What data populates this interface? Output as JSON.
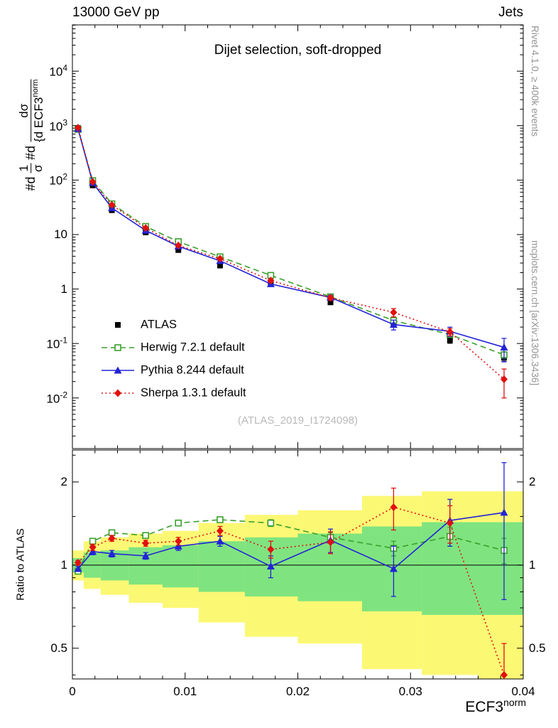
{
  "header": {
    "left": "13000 GeV pp",
    "right": "Jets"
  },
  "title": "Dijet selection, soft-dropped",
  "watermark": "(ATLAS_2019_I1724098)",
  "side_texts": {
    "top_right": "Rivet 4.1.0, ≥ 400k events",
    "bottom_right": "mcplots.cern.ch [arXiv:1306.3436]"
  },
  "axes": {
    "x_label_base": "ECF3",
    "x_label_sup": "norm",
    "ratio_label": "Ratio to ATLAS",
    "y_label_parts": {
      "p1": "#d",
      "num1": "1",
      "den1": "σ",
      "p2": "#d",
      "num2": "dσ",
      "den2_pre": "{d ECF3",
      "den2_sup": "norm"
    },
    "x_range": [
      0,
      0.04
    ],
    "main_y_range_exp": [
      -2.93,
      4.85
    ],
    "ratio_y_range": [
      0.387,
      2.61
    ],
    "x_ticks": [
      {
        "label": "0",
        "v": 0
      },
      {
        "label": "0.01",
        "v": 0.01
      },
      {
        "label": "0.02",
        "v": 0.02
      },
      {
        "label": "0.03",
        "v": 0.03
      },
      {
        "label": "0.04",
        "v": 0.04
      }
    ],
    "main_y_ticks": [
      {
        "base": "10",
        "sup": "4",
        "v": 10000
      },
      {
        "base": "10",
        "sup": "3",
        "v": 1000
      },
      {
        "base": "10",
        "sup": "2",
        "v": 100
      },
      {
        "base": "10",
        "sup": "",
        "v": 10
      },
      {
        "base": "1",
        "sup": "",
        "v": 1
      },
      {
        "base": "10",
        "sup": "-1",
        "v": 0.1
      },
      {
        "base": "10",
        "sup": "-2",
        "v": 0.01
      }
    ],
    "ratio_y_ticks": [
      {
        "label": "2",
        "v": 2
      },
      {
        "label": "1",
        "v": 1
      },
      {
        "label": "0.5",
        "v": 0.5
      }
    ]
  },
  "chart_data": {
    "type": "line",
    "title": "Dijet selection, soft-dropped",
    "xlabel": "ECF3^norm",
    "ylabel": "1/sigma dsigma/d ECF3^norm",
    "ratio_ylabel": "Ratio to ATLAS",
    "x_log": false,
    "y_log": true,
    "ratio_log": true,
    "x": [
      0.0005,
      0.0018,
      0.0035,
      0.0065,
      0.0094,
      0.0131,
      0.0176,
      0.0229,
      0.0285,
      0.0335,
      0.0383
    ],
    "series": [
      {
        "name": "ATLAS",
        "color": "#000000",
        "marker": "square",
        "line": "none",
        "values": [
          900,
          80,
          28,
          11,
          5.2,
          2.7,
          1.25,
          0.57,
          0.23,
          0.115,
          0.055
        ],
        "err": [
          36,
          3.2,
          1.1,
          0.55,
          0.26,
          0.16,
          0.09,
          0.046,
          0.023,
          0.014,
          0.008
        ]
      },
      {
        "name": "Herwig 7.2.1 default",
        "color": "#3aa02c",
        "marker": "square-open",
        "line": "dashed",
        "values": [
          855,
          97.6,
          36.7,
          14.1,
          7.4,
          3.9,
          1.78,
          0.72,
          0.264,
          0.146,
          0.062
        ],
        "err": [
          18,
          2,
          0.7,
          0.4,
          0.2,
          0.12,
          0.07,
          0.04,
          0.018,
          0.013,
          0.008
        ],
        "ratio": [
          0.95,
          1.22,
          1.31,
          1.28,
          1.42,
          1.46,
          1.42,
          1.26,
          1.15,
          1.27,
          1.13
        ],
        "ratio_err": [
          0.02,
          0.02,
          0.02,
          0.03,
          0.03,
          0.03,
          0.04,
          0.05,
          0.07,
          0.1,
          0.12
        ]
      },
      {
        "name": "Pythia 8.244 default",
        "color": "#2323d7",
        "marker": "triangle",
        "line": "solid",
        "values": [
          873,
          89.6,
          30.8,
          11.9,
          6.1,
          3.3,
          1.24,
          0.7,
          0.223,
          0.167,
          0.085
        ],
        "err": [
          18,
          2.4,
          0.9,
          0.4,
          0.21,
          0.14,
          0.11,
          0.07,
          0.046,
          0.032,
          0.039
        ],
        "ratio": [
          0.97,
          1.12,
          1.1,
          1.08,
          1.17,
          1.22,
          0.99,
          1.23,
          0.97,
          1.45,
          1.55
        ],
        "ratio_err": [
          0.02,
          0.03,
          0.03,
          0.03,
          0.04,
          0.05,
          0.09,
          0.12,
          0.2,
          0.28,
          0.8
        ]
      },
      {
        "name": "Sherpa 1.3.1 default",
        "color": "#e11010",
        "marker": "diamond",
        "line": "dotted",
        "values": [
          918,
          93,
          35,
          13.2,
          6.3,
          3.6,
          1.43,
          0.69,
          0.373,
          0.163,
          0.022
        ],
        "err": [
          18,
          2.4,
          0.9,
          0.4,
          0.21,
          0.14,
          0.1,
          0.063,
          0.064,
          0.025,
          0.012
        ],
        "ratio": [
          1.02,
          1.16,
          1.25,
          1.2,
          1.22,
          1.33,
          1.14,
          1.21,
          1.62,
          1.42,
          0.4
        ],
        "ratio_err": [
          0.02,
          0.03,
          0.03,
          0.03,
          0.04,
          0.05,
          0.08,
          0.11,
          0.28,
          0.22,
          0.12
        ]
      }
    ],
    "bands": {
      "bin_edges": [
        0,
        0.001,
        0.0025,
        0.005,
        0.008,
        0.0112,
        0.0153,
        0.02,
        0.0257,
        0.031,
        0.036,
        0.04
      ],
      "yellow": {
        "color": "#fbf874",
        "lo": [
          0.88,
          0.82,
          0.78,
          0.73,
          0.7,
          0.62,
          0.55,
          0.52,
          0.42,
          0.4,
          0.35
        ],
        "hi": [
          1.13,
          1.22,
          1.26,
          1.3,
          1.33,
          1.42,
          1.52,
          1.58,
          1.78,
          1.85,
          1.85
        ]
      },
      "green": {
        "color": "#7fe47f",
        "lo": [
          0.94,
          0.9,
          0.88,
          0.85,
          0.83,
          0.8,
          0.77,
          0.74,
          0.68,
          0.66,
          0.66
        ],
        "hi": [
          1.06,
          1.11,
          1.13,
          1.16,
          1.18,
          1.22,
          1.26,
          1.3,
          1.38,
          1.43,
          1.43
        ]
      }
    },
    "legend_position": "middle-left",
    "grid": false
  }
}
